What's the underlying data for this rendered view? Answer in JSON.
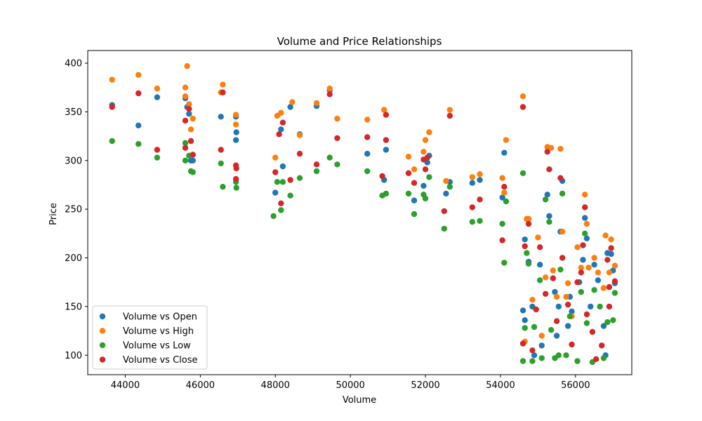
{
  "chart_data": {
    "type": "scatter",
    "title": "Volume and Price Relationships",
    "xlabel": "Volume",
    "ylabel": "Price",
    "xlim": [
      43000,
      57500
    ],
    "ylim": [
      80,
      413
    ],
    "xticks": [
      44000,
      46000,
      48000,
      50000,
      52000,
      54000,
      56000
    ],
    "yticks": [
      100,
      150,
      200,
      250,
      300,
      350,
      400
    ],
    "grid": false,
    "legend_position": "lower-left",
    "series": [
      {
        "name": "Volume vs Open",
        "color": "#1f77b4",
        "points": [
          [
            43650,
            357
          ],
          [
            44350,
            336
          ],
          [
            44850,
            365
          ],
          [
            45600,
            364
          ],
          [
            45650,
            355
          ],
          [
            45700,
            348
          ],
          [
            45750,
            300
          ],
          [
            45800,
            300
          ],
          [
            46550,
            345
          ],
          [
            46950,
            345
          ],
          [
            46950,
            321
          ],
          [
            46960,
            329
          ],
          [
            48000,
            267
          ],
          [
            48150,
            332
          ],
          [
            48200,
            294
          ],
          [
            48400,
            355
          ],
          [
            48650,
            327
          ],
          [
            49100,
            356
          ],
          [
            49450,
            372
          ],
          [
            50450,
            307
          ],
          [
            50900,
            280
          ],
          [
            50950,
            311
          ],
          [
            51700,
            259
          ],
          [
            51950,
            274
          ],
          [
            52050,
            298
          ],
          [
            52100,
            305
          ],
          [
            52550,
            266
          ],
          [
            52650,
            278
          ],
          [
            53250,
            277
          ],
          [
            53450,
            280
          ],
          [
            54050,
            262
          ],
          [
            54100,
            308
          ],
          [
            54600,
            146
          ],
          [
            54650,
            136
          ],
          [
            54650,
            219
          ],
          [
            54750,
            196
          ],
          [
            54850,
            150
          ],
          [
            54900,
            100
          ],
          [
            55050,
            193
          ],
          [
            55100,
            110
          ],
          [
            55250,
            265
          ],
          [
            55300,
            243
          ],
          [
            55450,
            165
          ],
          [
            55500,
            120
          ],
          [
            55550,
            150
          ],
          [
            55600,
            227
          ],
          [
            55650,
            279
          ],
          [
            55800,
            130
          ],
          [
            55850,
            160
          ],
          [
            55900,
            145
          ],
          [
            56100,
            175
          ],
          [
            56200,
            198
          ],
          [
            56250,
            241
          ],
          [
            56300,
            220
          ],
          [
            56400,
            150
          ],
          [
            56500,
            193
          ],
          [
            56600,
            177
          ],
          [
            56750,
            130
          ],
          [
            56800,
            100
          ],
          [
            56850,
            205
          ],
          [
            56950,
            204
          ],
          [
            57000,
            187
          ],
          [
            57050,
            174
          ]
        ]
      },
      {
        "name": "Volume vs High",
        "color": "#ff7f0e",
        "points": [
          [
            43650,
            383
          ],
          [
            44350,
            388
          ],
          [
            44850,
            374
          ],
          [
            45600,
            375
          ],
          [
            45600,
            366
          ],
          [
            45650,
            397
          ],
          [
            45700,
            358
          ],
          [
            45750,
            332
          ],
          [
            45800,
            343
          ],
          [
            46550,
            370
          ],
          [
            46600,
            378
          ],
          [
            46950,
            347
          ],
          [
            46950,
            337
          ],
          [
            48000,
            303
          ],
          [
            48050,
            346
          ],
          [
            48150,
            349
          ],
          [
            48450,
            360
          ],
          [
            48650,
            326
          ],
          [
            49100,
            359
          ],
          [
            49450,
            374
          ],
          [
            49650,
            343
          ],
          [
            50450,
            342
          ],
          [
            50900,
            352
          ],
          [
            51550,
            304
          ],
          [
            51700,
            291
          ],
          [
            51950,
            309
          ],
          [
            52000,
            321
          ],
          [
            52100,
            329
          ],
          [
            52550,
            279
          ],
          [
            52650,
            352
          ],
          [
            53250,
            283
          ],
          [
            53450,
            286
          ],
          [
            54050,
            282
          ],
          [
            54100,
            267
          ],
          [
            54150,
            321
          ],
          [
            54600,
            366
          ],
          [
            54650,
            114
          ],
          [
            54700,
            240
          ],
          [
            54750,
            240
          ],
          [
            54850,
            157
          ],
          [
            55000,
            221
          ],
          [
            55100,
            120
          ],
          [
            55200,
            180
          ],
          [
            55250,
            314
          ],
          [
            55350,
            313
          ],
          [
            55400,
            187
          ],
          [
            55500,
            160
          ],
          [
            55600,
            312
          ],
          [
            55650,
            227
          ],
          [
            55750,
            160
          ],
          [
            55800,
            174
          ],
          [
            55900,
            140
          ],
          [
            56050,
            211
          ],
          [
            56150,
            190
          ],
          [
            56250,
            265
          ],
          [
            56300,
            235
          ],
          [
            56350,
            190
          ],
          [
            56500,
            200
          ],
          [
            56600,
            185
          ],
          [
            56750,
            169
          ],
          [
            56800,
            223
          ],
          [
            56950,
            219
          ],
          [
            57050,
            192
          ],
          [
            56900,
            185
          ]
        ]
      },
      {
        "name": "Volume vs Low",
        "color": "#2ca02c",
        "points": [
          [
            43650,
            320
          ],
          [
            44350,
            317
          ],
          [
            44850,
            303
          ],
          [
            45600,
            300
          ],
          [
            45600,
            318
          ],
          [
            45700,
            305
          ],
          [
            45750,
            289
          ],
          [
            45800,
            288
          ],
          [
            46550,
            297
          ],
          [
            46600,
            273
          ],
          [
            46950,
            278
          ],
          [
            46960,
            272
          ],
          [
            47950,
            243
          ],
          [
            48050,
            278
          ],
          [
            48150,
            249
          ],
          [
            48200,
            278
          ],
          [
            48400,
            264
          ],
          [
            48650,
            282
          ],
          [
            49100,
            289
          ],
          [
            49450,
            303
          ],
          [
            49650,
            296
          ],
          [
            50450,
            289
          ],
          [
            50850,
            264
          ],
          [
            50950,
            266
          ],
          [
            51550,
            266
          ],
          [
            51700,
            245
          ],
          [
            51950,
            265
          ],
          [
            52000,
            261
          ],
          [
            52100,
            283
          ],
          [
            52500,
            230
          ],
          [
            52650,
            273
          ],
          [
            53250,
            237
          ],
          [
            53450,
            238
          ],
          [
            54050,
            235
          ],
          [
            54100,
            195
          ],
          [
            54150,
            258
          ],
          [
            54600,
            287
          ],
          [
            54600,
            94
          ],
          [
            54650,
            128
          ],
          [
            54700,
            205
          ],
          [
            54750,
            194
          ],
          [
            54850,
            94
          ],
          [
            54900,
            129
          ],
          [
            55050,
            177
          ],
          [
            55100,
            97
          ],
          [
            55200,
            260
          ],
          [
            55300,
            237
          ],
          [
            55350,
            126
          ],
          [
            55450,
            97
          ],
          [
            55550,
            100
          ],
          [
            55600,
            188
          ],
          [
            55650,
            266
          ],
          [
            55750,
            100
          ],
          [
            55850,
            140
          ],
          [
            56050,
            94
          ],
          [
            56150,
            165
          ],
          [
            56250,
            225
          ],
          [
            56300,
            133
          ],
          [
            56450,
            93
          ],
          [
            56500,
            167
          ],
          [
            56650,
            150
          ],
          [
            56750,
            97
          ],
          [
            56850,
            134
          ],
          [
            57000,
            136
          ],
          [
            57050,
            164
          ]
        ]
      },
      {
        "name": "Volume vs Close",
        "color": "#d62728",
        "points": [
          [
            43650,
            355
          ],
          [
            44350,
            369
          ],
          [
            44850,
            311
          ],
          [
            45600,
            341
          ],
          [
            45600,
            313
          ],
          [
            45700,
            353
          ],
          [
            45750,
            320
          ],
          [
            45800,
            306
          ],
          [
            46550,
            311
          ],
          [
            46600,
            370
          ],
          [
            46950,
            281
          ],
          [
            46950,
            295
          ],
          [
            46960,
            292
          ],
          [
            48000,
            288
          ],
          [
            48100,
            327
          ],
          [
            48150,
            256
          ],
          [
            48200,
            339
          ],
          [
            48400,
            280
          ],
          [
            48650,
            307
          ],
          [
            49100,
            296
          ],
          [
            49450,
            368
          ],
          [
            49650,
            323
          ],
          [
            50450,
            324
          ],
          [
            50850,
            284
          ],
          [
            50950,
            347
          ],
          [
            50950,
            321
          ],
          [
            51550,
            287
          ],
          [
            51700,
            277
          ],
          [
            51950,
            301
          ],
          [
            52000,
            291
          ],
          [
            52050,
            303
          ],
          [
            52500,
            248
          ],
          [
            52650,
            346
          ],
          [
            53250,
            252
          ],
          [
            53450,
            260
          ],
          [
            54050,
            218
          ],
          [
            54100,
            273
          ],
          [
            54600,
            355
          ],
          [
            54600,
            112
          ],
          [
            54650,
            212
          ],
          [
            54750,
            235
          ],
          [
            54850,
            105
          ],
          [
            54950,
            147
          ],
          [
            55050,
            211
          ],
          [
            55200,
            163
          ],
          [
            55250,
            309
          ],
          [
            55300,
            291
          ],
          [
            55400,
            179
          ],
          [
            55500,
            135
          ],
          [
            55600,
            282
          ],
          [
            55650,
            200
          ],
          [
            55800,
            152
          ],
          [
            55900,
            111
          ],
          [
            56050,
            175
          ],
          [
            56150,
            185
          ],
          [
            56200,
            213
          ],
          [
            56250,
            252
          ],
          [
            56300,
            142
          ],
          [
            56450,
            124
          ],
          [
            56550,
            96
          ],
          [
            56700,
            110
          ],
          [
            56850,
            198
          ],
          [
            56900,
            150
          ],
          [
            56950,
            210
          ],
          [
            57050,
            176
          ],
          [
            56900,
            170
          ]
        ]
      }
    ]
  }
}
